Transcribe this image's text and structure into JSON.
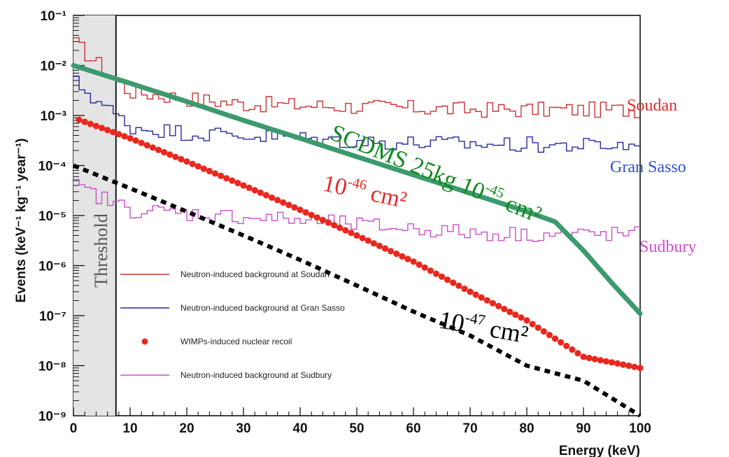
{
  "chart_data": {
    "type": "line",
    "xlabel": "Energy (keV)",
    "ylabel": "Events (keV⁻¹ kg⁻¹ year⁻¹)",
    "xlim": [
      0,
      100
    ],
    "ylim": [
      1e-09,
      0.1
    ],
    "y_scale": "log",
    "x_ticks": [
      0,
      10,
      20,
      30,
      40,
      50,
      60,
      70,
      80,
      90,
      100
    ],
    "y_ticks": [
      {
        "exp": -9,
        "label": "10⁻⁹"
      },
      {
        "exp": -8,
        "label": "10⁻⁸"
      },
      {
        "exp": -7,
        "label": "10⁻⁷"
      },
      {
        "exp": -6,
        "label": "10⁻⁶"
      },
      {
        "exp": -5,
        "label": "10⁻⁵"
      },
      {
        "exp": -4,
        "label": "10⁻⁴"
      },
      {
        "exp": -3,
        "label": "10⁻³"
      },
      {
        "exp": -2,
        "label": "10⁻²"
      },
      {
        "exp": -1,
        "label": "10⁻¹"
      }
    ],
    "threshold": {
      "label": "Threshold",
      "x_max": 7.5
    },
    "legend_placement": "lower-left",
    "legend": [
      {
        "label": "Neutron-induced background at Soudan",
        "color": "#c83232",
        "kind": "line"
      },
      {
        "label": "Neutron-induced background at Gran Sasso",
        "color": "#2828a0",
        "kind": "line"
      },
      {
        "label": "WIMPs-induced nuclear recoil",
        "color": "#e8281e",
        "kind": "dot"
      },
      {
        "label": "Neutron-induced background at Sudbury",
        "color": "#c850c8",
        "kind": "line"
      }
    ],
    "series": [
      {
        "name": "Soudan",
        "kind": "hist",
        "color": "#c83232",
        "x": [
          0,
          10,
          20,
          30,
          40,
          50,
          60,
          70,
          80,
          90,
          100
        ],
        "y": [
          0.03,
          0.003,
          0.0022,
          0.0017,
          0.0016,
          0.0015,
          0.0014,
          0.0013,
          0.0013,
          0.0013,
          0.0013
        ]
      },
      {
        "name": "Gran Sasso",
        "kind": "hist",
        "color": "#2828a0",
        "x": [
          0,
          10,
          20,
          30,
          40,
          50,
          60,
          70,
          80,
          90,
          100
        ],
        "y": [
          0.005,
          0.0006,
          0.00045,
          0.0004,
          0.00035,
          0.0003,
          0.00028,
          0.00027,
          0.00026,
          0.00025,
          0.00025
        ]
      },
      {
        "name": "Sudbury",
        "kind": "hist",
        "color": "#c850c8",
        "x": [
          0,
          10,
          20,
          30,
          40,
          50,
          60,
          70,
          80,
          90,
          100
        ],
        "y": [
          4e-05,
          1.3e-05,
          1.1e-05,
          9.5e-06,
          8e-06,
          6.5e-06,
          5.5e-06,
          4.5e-06,
          4.2e-06,
          4.2e-06,
          4.2e-06
        ]
      },
      {
        "name": "WIMPs 10⁻⁴⁶ cm²",
        "kind": "dots",
        "color": "#e8281e",
        "x": [
          0,
          10,
          20,
          30,
          40,
          50,
          60,
          70,
          80,
          90,
          100
        ],
        "y": [
          0.0009,
          0.00035,
          0.00012,
          4e-05,
          1.3e-05,
          4e-06,
          1.2e-06,
          3e-07,
          8e-08,
          1.5e-08,
          9e-09
        ]
      },
      {
        "name": "SCDMS 25kg 10⁻⁴⁵ cm²",
        "kind": "thick",
        "color": "#3c9a6e",
        "x": [
          0,
          10,
          20,
          30,
          40,
          50,
          60,
          70,
          80,
          85,
          90,
          95,
          100
        ],
        "y": [
          0.01,
          0.0044,
          0.0019,
          0.0008,
          0.00035,
          0.00015,
          6.5e-05,
          2.8e-05,
          1.2e-05,
          7.5e-06,
          2e-06,
          4.5e-07,
          1.1e-07
        ]
      },
      {
        "name": "10⁻⁴⁷ cm²",
        "kind": "dotted",
        "color": "#000000",
        "x": [
          0,
          10,
          20,
          30,
          40,
          50,
          60,
          70,
          80,
          90,
          100
        ],
        "y": [
          0.0001,
          3.5e-05,
          1.2e-05,
          4e-06,
          1.3e-06,
          4e-07,
          1.2e-07,
          4e-08,
          1e-08,
          5e-09,
          1e-09
        ]
      }
    ],
    "annotations": [
      {
        "id": "soudan",
        "base": "Soudan",
        "sup": "",
        "tail": "",
        "color": "#e02a2a",
        "size": 24
      },
      {
        "id": "gransasso",
        "base": "Gran Sasso",
        "sup": "",
        "tail": "",
        "color": "#2c4fd8",
        "size": 24
      },
      {
        "id": "sudbury",
        "base": "Sudbury",
        "sup": "",
        "tail": "",
        "color": "#d04ad0",
        "size": 24
      },
      {
        "id": "wimp46",
        "base": "10",
        "sup": "-46",
        "tail": " cm²",
        "color": "#e82a2a",
        "size": 34
      },
      {
        "id": "scdms",
        "base": "SCDMS 25kg 10",
        "sup": "-45",
        "tail": " cm²",
        "color": "#128a1e",
        "size": 34
      },
      {
        "id": "wimp47",
        "base": "10",
        "sup": "-47",
        "tail": " cm²",
        "color": "#000000",
        "size": 36
      }
    ]
  }
}
